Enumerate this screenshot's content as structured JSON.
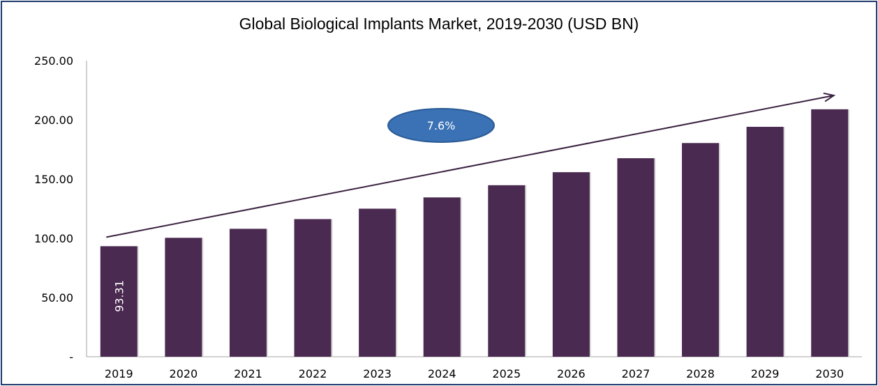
{
  "chart_data": {
    "type": "bar",
    "title": "Global Biological Implants Market, 2019-2030 (USD BN)",
    "categories": [
      "2019",
      "2020",
      "2021",
      "2022",
      "2023",
      "2024",
      "2025",
      "2026",
      "2027",
      "2028",
      "2029",
      "2030"
    ],
    "values": [
      93.31,
      100.4,
      108.0,
      116.2,
      125.0,
      134.5,
      144.8,
      155.8,
      167.6,
      180.4,
      194.1,
      208.9
    ],
    "ylim": [
      0,
      250
    ],
    "yticks": [
      "-",
      "50.00",
      "100.00",
      "150.00",
      "200.00",
      "250.00"
    ],
    "data_labels": [
      {
        "index": 0,
        "text": "93.31"
      }
    ],
    "annotation": {
      "text": "7.6%"
    },
    "grid": false,
    "legend": "none",
    "colors": {
      "bar": "#4a2a50",
      "ellipse": "#3a72b5",
      "ellipse_border": "#2a5a95",
      "arrow": "#3a2140",
      "frame": "#1f3b6e"
    }
  }
}
